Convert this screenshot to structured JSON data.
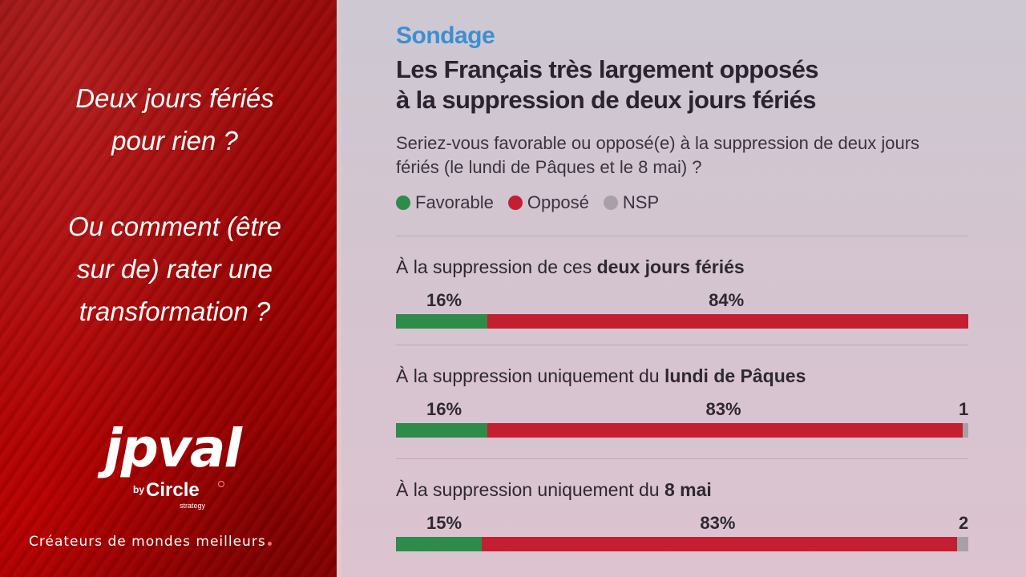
{
  "left": {
    "quote1": [
      "Deux jours fériés",
      "pour rien ?"
    ],
    "quote2": [
      "Ou comment (être",
      "sur de)  rater une",
      "transformation ?"
    ],
    "logo": {
      "word": "jpval",
      "by": "by",
      "circle": "Circle",
      "strategy": "strategy"
    },
    "tagline": "Créateurs de mondes meilleurs"
  },
  "survey": {
    "kicker": "Sondage",
    "headline_line1": "Les Français très largement opposés",
    "headline_line2": "à la suppression de deux jours fériés",
    "question": "Seriez-vous favorable ou opposé(e) à la suppression de deux jours fériés (le lundi de Pâques et le 8 mai) ?",
    "legend": [
      {
        "label": "Favorable",
        "color": "#2e8b4a"
      },
      {
        "label": "Opposé",
        "color": "#c41f30"
      },
      {
        "label": "NSP",
        "color": "#a8a0a8"
      }
    ]
  },
  "chart_data": {
    "type": "bar",
    "stacked": true,
    "orientation": "horizontal",
    "unit": "%",
    "categories": [
      {
        "prefix": "À la suppression de ces ",
        "bold": "deux jours fériés"
      },
      {
        "prefix": "À la suppression uniquement du ",
        "bold": "lundi de Pâques"
      },
      {
        "prefix": "À la suppression uniquement du ",
        "bold": "8 mai"
      }
    ],
    "series": [
      {
        "name": "Favorable",
        "color": "#2e8b4a",
        "values": [
          16,
          16,
          15
        ],
        "labels": [
          "16%",
          "16%",
          "15%"
        ]
      },
      {
        "name": "Opposé",
        "color": "#c41f30",
        "values": [
          84,
          83,
          83
        ],
        "labels": [
          "84%",
          "83%",
          "83%"
        ]
      },
      {
        "name": "NSP",
        "color": "#a8a0a8",
        "values": [
          0,
          1,
          2
        ],
        "labels": [
          "",
          "1",
          "2"
        ]
      }
    ]
  }
}
